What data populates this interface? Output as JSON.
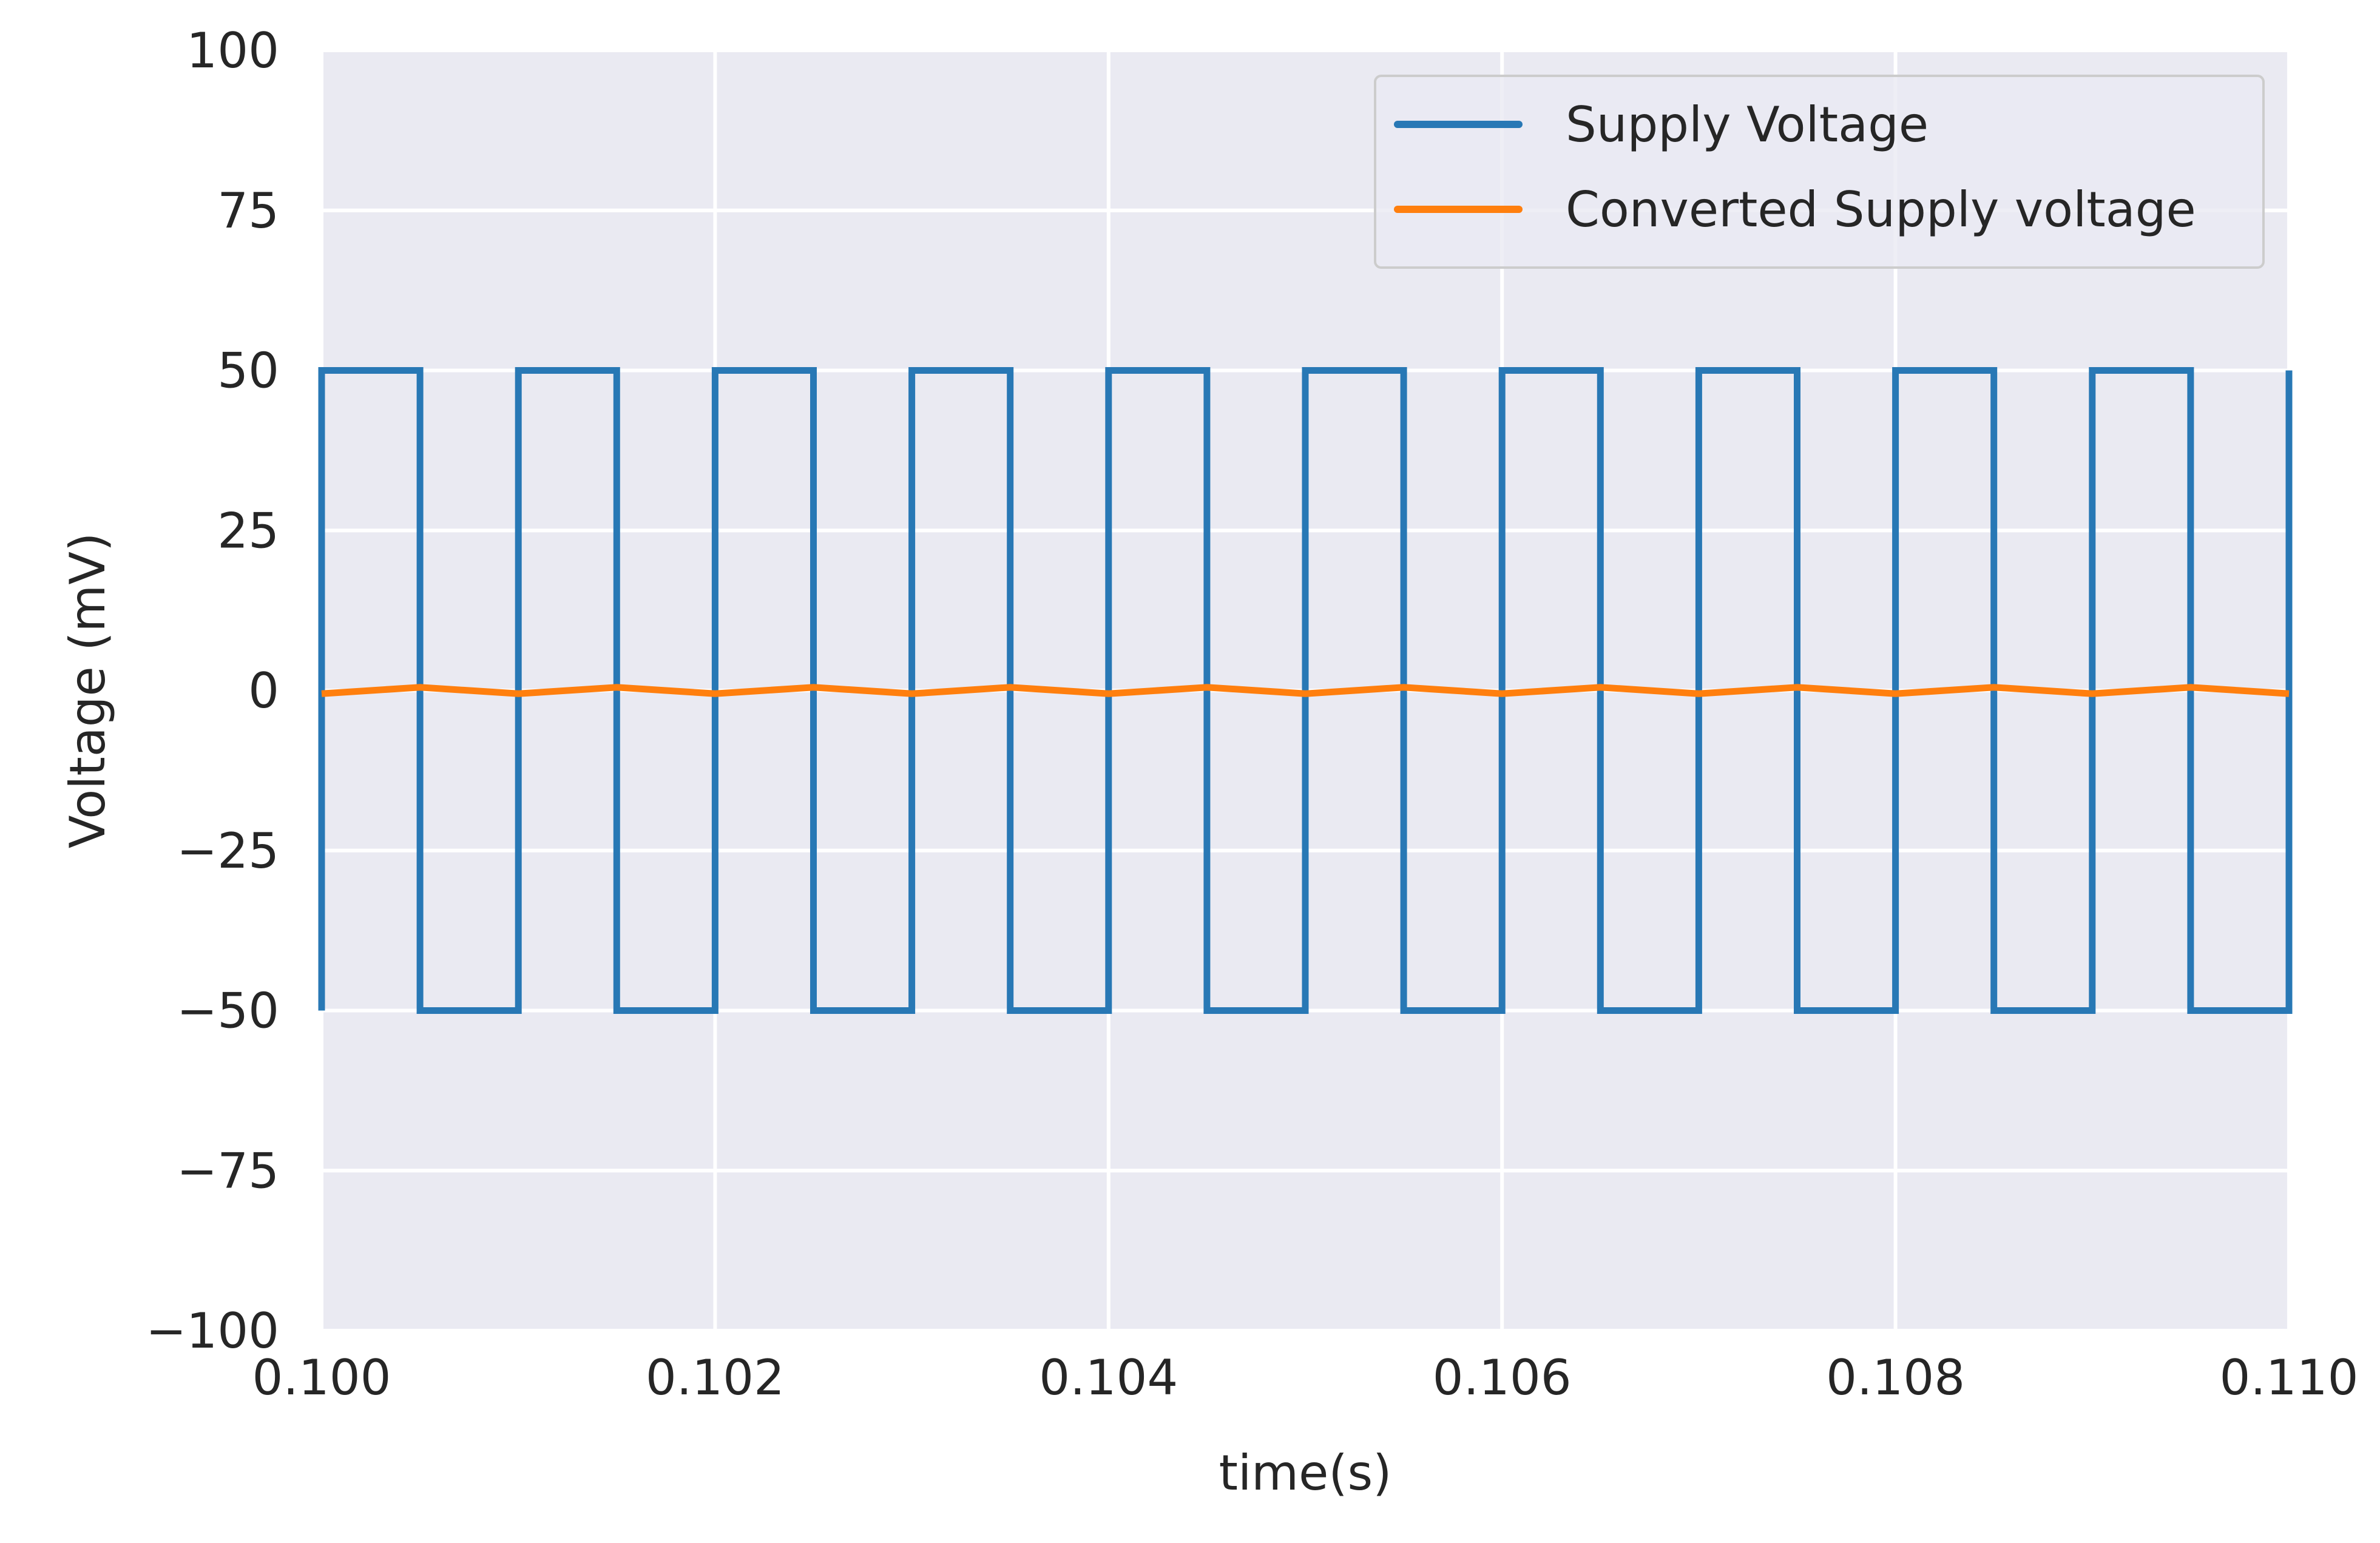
{
  "chart_data": {
    "type": "line",
    "title": "",
    "xlabel": "time(s)",
    "ylabel": "Voltage (mV)",
    "xlim": [
      0.1,
      0.11
    ],
    "ylim": [
      -100,
      100
    ],
    "xticks": [
      "0.100",
      "0.102",
      "0.104",
      "0.106",
      "0.108",
      "0.110"
    ],
    "yticks": [
      "100",
      "75",
      "50",
      "25",
      "0",
      "−25",
      "−50",
      "−75",
      "−100"
    ],
    "grid": true,
    "legend_position": "top-right",
    "background": "#eaeaf2",
    "series": [
      {
        "name": "Supply Voltage",
        "color": "#2878b5",
        "style": "step",
        "x": [
          0.1,
          0.1,
          0.1005,
          0.1005,
          0.101,
          0.101,
          0.1015,
          0.1015,
          0.102,
          0.102,
          0.1025,
          0.1025,
          0.103,
          0.103,
          0.1035,
          0.1035,
          0.104,
          0.104,
          0.1045,
          0.1045,
          0.105,
          0.105,
          0.1055,
          0.1055,
          0.106,
          0.106,
          0.1065,
          0.1065,
          0.107,
          0.107,
          0.1075,
          0.1075,
          0.108,
          0.108,
          0.1085,
          0.1085,
          0.109,
          0.109,
          0.1095,
          0.1095,
          0.11,
          0.11
        ],
        "y": [
          -50,
          50,
          50,
          -50,
          -50,
          50,
          50,
          -50,
          -50,
          50,
          50,
          -50,
          -50,
          50,
          50,
          -50,
          -50,
          50,
          50,
          -50,
          -50,
          50,
          50,
          -50,
          -50,
          50,
          50,
          -50,
          -50,
          50,
          50,
          -50,
          -50,
          50,
          50,
          -50,
          -50,
          50,
          50,
          -50,
          -50,
          50
        ]
      },
      {
        "name": "Converted Supply voltage",
        "color": "#ff7f0e",
        "style": "line",
        "x": [
          0.1,
          0.1005,
          0.101,
          0.1015,
          0.102,
          0.1025,
          0.103,
          0.1035,
          0.104,
          0.1045,
          0.105,
          0.1055,
          0.106,
          0.1065,
          0.107,
          0.1075,
          0.108,
          0.1085,
          0.109,
          0.1095,
          0.11
        ],
        "y": [
          -0.5,
          0.5,
          -0.5,
          0.5,
          -0.5,
          0.5,
          -0.5,
          0.5,
          -0.5,
          0.5,
          -0.5,
          0.5,
          -0.5,
          0.5,
          -0.5,
          0.5,
          -0.5,
          0.5,
          -0.5,
          0.5,
          -0.5
        ]
      }
    ]
  }
}
